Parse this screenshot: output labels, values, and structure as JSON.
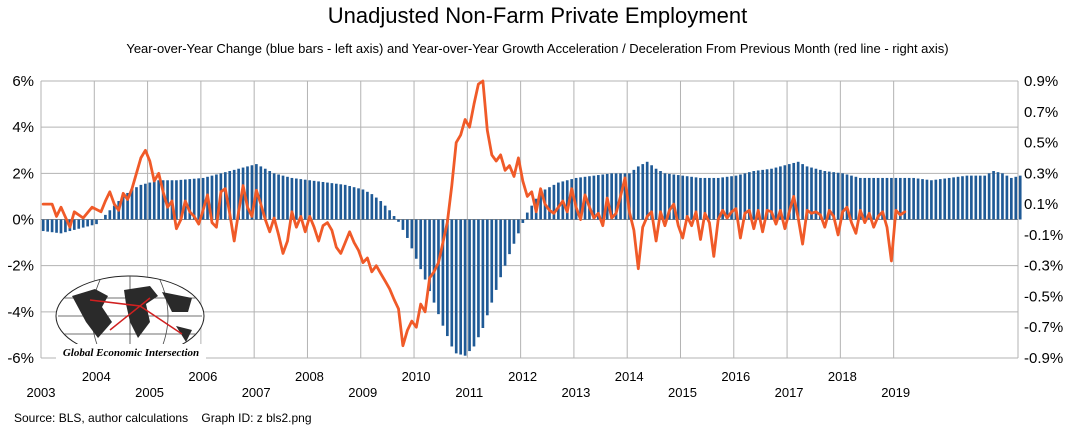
{
  "chart_data": {
    "type": "bar+line",
    "title": "Unadjusted Non-Farm Private Employment",
    "subtitle": "Year-over-Year Change (blue bars - left axis) and Year-over-Year Growth Acceleration / Deceleration From Previous Month (red line - right axis)",
    "source": "Source: BLS, author calculations    Graph ID: z bls2.png",
    "left_axis": {
      "ylim": [
        -6,
        6
      ],
      "ticks": [
        "6%",
        "4%",
        "2%",
        "0%",
        "-2%",
        "-4%",
        "-6%"
      ]
    },
    "right_axis": {
      "ylim": [
        -0.9,
        0.9
      ],
      "ticks": [
        "0.9%",
        "0.7%",
        "0.5%",
        "0.3%",
        "0.1%",
        "-0.1%",
        "-0.3%",
        "-0.5%",
        "-0.7%",
        "-0.9%"
      ]
    },
    "x_axis": {
      "years": [
        "2003",
        "2004",
        "2005",
        "2006",
        "2007",
        "2008",
        "2009",
        "2010",
        "2011",
        "2012",
        "2013",
        "2014",
        "2015",
        "2016",
        "2017",
        "2018",
        "2019"
      ],
      "start": "2003-01",
      "months": 194
    },
    "grid": true,
    "series": [
      {
        "axis": "left",
        "kind": "bar",
        "color": "#1f5a96",
        "anchors": [
          [
            0,
            -0.5
          ],
          [
            4,
            -0.6
          ],
          [
            8,
            -0.4
          ],
          [
            12,
            -0.2
          ],
          [
            14,
            0.2
          ],
          [
            16,
            0.6
          ],
          [
            18,
            1.0
          ],
          [
            20,
            1.3
          ],
          [
            22,
            1.5
          ],
          [
            26,
            1.7
          ],
          [
            30,
            1.7
          ],
          [
            36,
            1.8
          ],
          [
            40,
            2.0
          ],
          [
            44,
            2.2
          ],
          [
            48,
            2.4
          ],
          [
            52,
            2.0
          ],
          [
            56,
            1.8
          ],
          [
            60,
            1.7
          ],
          [
            64,
            1.6
          ],
          [
            68,
            1.5
          ],
          [
            72,
            1.3
          ],
          [
            74,
            1.1
          ],
          [
            76,
            0.8
          ],
          [
            78,
            0.4
          ],
          [
            80,
            -0.1
          ],
          [
            82,
            -0.8
          ],
          [
            84,
            -1.7
          ],
          [
            86,
            -2.6
          ],
          [
            88,
            -3.6
          ],
          [
            90,
            -4.6
          ],
          [
            92,
            -5.5
          ],
          [
            93,
            -5.8
          ],
          [
            95,
            -5.9
          ],
          [
            97,
            -5.5
          ],
          [
            99,
            -4.7
          ],
          [
            101,
            -3.6
          ],
          [
            103,
            -2.5
          ],
          [
            105,
            -1.5
          ],
          [
            107,
            -0.6
          ],
          [
            109,
            0.3
          ],
          [
            111,
            0.9
          ],
          [
            113,
            1.3
          ],
          [
            116,
            1.6
          ],
          [
            120,
            1.8
          ],
          [
            124,
            1.9
          ],
          [
            128,
            2.0
          ],
          [
            132,
            2.0
          ],
          [
            134,
            2.3
          ],
          [
            136,
            2.5
          ],
          [
            138,
            2.2
          ],
          [
            140,
            2.0
          ],
          [
            144,
            1.9
          ],
          [
            148,
            1.8
          ],
          [
            152,
            1.8
          ],
          [
            156,
            1.9
          ],
          [
            160,
            2.1
          ],
          [
            164,
            2.2
          ],
          [
            168,
            2.4
          ],
          [
            170,
            2.5
          ],
          [
            172,
            2.3
          ],
          [
            176,
            2.1
          ],
          [
            180,
            2.0
          ],
          [
            184,
            1.8
          ],
          [
            188,
            1.8
          ],
          [
            192,
            1.8
          ],
          [
            196,
            1.8
          ],
          [
            200,
            1.7
          ],
          [
            204,
            1.8
          ],
          [
            208,
            1.9
          ],
          [
            212,
            1.9
          ],
          [
            214,
            2.1
          ],
          [
            216,
            2.0
          ],
          [
            218,
            1.8
          ],
          [
            220,
            1.9
          ]
        ]
      },
      {
        "axis": "right",
        "kind": "line",
        "color": "#f05a28",
        "anchors": [
          [
            0,
            0.1
          ],
          [
            2,
            0.1
          ],
          [
            3,
            0.02
          ],
          [
            4,
            0.08
          ],
          [
            6,
            -0.05
          ],
          [
            7,
            0.05
          ],
          [
            9,
            0.01
          ],
          [
            11,
            0.08
          ],
          [
            13,
            0.05
          ],
          [
            14,
            0.12
          ],
          [
            15,
            0.18
          ],
          [
            16,
            0.1
          ],
          [
            17,
            0.06
          ],
          [
            18,
            0.17
          ],
          [
            19,
            0.13
          ],
          [
            20,
            0.2
          ],
          [
            22,
            0.4
          ],
          [
            23,
            0.45
          ],
          [
            24,
            0.38
          ],
          [
            25,
            0.25
          ],
          [
            26,
            0.3
          ],
          [
            27,
            0.18
          ],
          [
            28,
            0.08
          ],
          [
            29,
            0.12
          ],
          [
            30,
            -0.06
          ],
          [
            31,
            0.0
          ],
          [
            32,
            0.12
          ],
          [
            33,
            0.05
          ],
          [
            34,
            0.02
          ],
          [
            35,
            -0.03
          ],
          [
            36,
            0.06
          ],
          [
            37,
            0.16
          ],
          [
            38,
            -0.02
          ],
          [
            39,
            -0.05
          ],
          [
            40,
            0.18
          ],
          [
            41,
            0.2
          ],
          [
            42,
            0.04
          ],
          [
            43,
            -0.14
          ],
          [
            44,
            0.05
          ],
          [
            45,
            0.22
          ],
          [
            46,
            0.08
          ],
          [
            47,
            0.02
          ],
          [
            48,
            0.19
          ],
          [
            49,
            0.1
          ],
          [
            50,
            0.0
          ],
          [
            51,
            -0.08
          ],
          [
            52,
            0.01
          ],
          [
            53,
            -0.1
          ],
          [
            54,
            -0.22
          ],
          [
            55,
            -0.14
          ],
          [
            56,
            0.05
          ],
          [
            57,
            -0.05
          ],
          [
            58,
            0.02
          ],
          [
            59,
            -0.08
          ],
          [
            60,
            0.02
          ],
          [
            61,
            -0.05
          ],
          [
            62,
            -0.14
          ],
          [
            63,
            -0.04
          ],
          [
            64,
            -0.02
          ],
          [
            65,
            -0.07
          ],
          [
            66,
            -0.18
          ],
          [
            67,
            -0.22
          ],
          [
            68,
            -0.15
          ],
          [
            69,
            -0.08
          ],
          [
            70,
            -0.15
          ],
          [
            71,
            -0.2
          ],
          [
            72,
            -0.28
          ],
          [
            73,
            -0.25
          ],
          [
            74,
            -0.34
          ],
          [
            75,
            -0.3
          ],
          [
            76,
            -0.35
          ],
          [
            77,
            -0.4
          ],
          [
            78,
            -0.45
          ],
          [
            79,
            -0.52
          ],
          [
            80,
            -0.58
          ],
          [
            81,
            -0.82
          ],
          [
            82,
            -0.72
          ],
          [
            83,
            -0.66
          ],
          [
            84,
            -0.7
          ],
          [
            85,
            -0.55
          ],
          [
            86,
            -0.6
          ],
          [
            87,
            -0.38
          ],
          [
            88,
            -0.34
          ],
          [
            89,
            -0.28
          ],
          [
            90,
            -0.15
          ],
          [
            91,
            -0.02
          ],
          [
            92,
            0.22
          ],
          [
            93,
            0.5
          ],
          [
            94,
            0.55
          ],
          [
            95,
            0.65
          ],
          [
            96,
            0.6
          ],
          [
            97,
            0.75
          ],
          [
            98,
            0.88
          ],
          [
            99,
            0.9
          ],
          [
            100,
            0.58
          ],
          [
            101,
            0.42
          ],
          [
            102,
            0.38
          ],
          [
            103,
            0.42
          ],
          [
            104,
            0.32
          ],
          [
            105,
            0.35
          ],
          [
            106,
            0.28
          ],
          [
            107,
            0.4
          ],
          [
            108,
            0.25
          ],
          [
            109,
            0.15
          ],
          [
            110,
            0.18
          ],
          [
            111,
            0.05
          ],
          [
            112,
            0.2
          ],
          [
            113,
            0.1
          ],
          [
            114,
            0.06
          ],
          [
            115,
            0.04
          ],
          [
            116,
            0.08
          ],
          [
            117,
            0.12
          ],
          [
            118,
            0.05
          ],
          [
            119,
            0.2
          ],
          [
            120,
            0.08
          ],
          [
            121,
            0.0
          ],
          [
            122,
            0.16
          ],
          [
            123,
            0.08
          ],
          [
            124,
            0.01
          ],
          [
            125,
            0.04
          ],
          [
            126,
            -0.04
          ],
          [
            127,
            0.14
          ],
          [
            128,
            0.01
          ],
          [
            129,
            0.04
          ],
          [
            130,
            0.15
          ],
          [
            131,
            0.27
          ],
          [
            132,
            0.05
          ],
          [
            133,
            -0.07
          ],
          [
            134,
            -0.32
          ],
          [
            135,
            -0.05
          ],
          [
            136,
            0.02
          ],
          [
            137,
            0.05
          ],
          [
            138,
            -0.14
          ],
          [
            139,
            0.05
          ],
          [
            140,
            -0.04
          ],
          [
            141,
            0.06
          ],
          [
            142,
            0.1
          ],
          [
            143,
            -0.04
          ],
          [
            144,
            -0.12
          ],
          [
            145,
            0.02
          ],
          [
            146,
            -0.04
          ],
          [
            147,
            0.05
          ],
          [
            148,
            -0.13
          ],
          [
            149,
            0.04
          ],
          [
            150,
            -0.02
          ],
          [
            151,
            -0.24
          ],
          [
            152,
            0.0
          ],
          [
            153,
            0.06
          ],
          [
            154,
            0.01
          ],
          [
            155,
            0.05
          ],
          [
            156,
            0.07
          ],
          [
            157,
            -0.12
          ],
          [
            158,
            0.04
          ],
          [
            159,
            0.06
          ],
          [
            160,
            -0.06
          ],
          [
            161,
            0.06
          ],
          [
            162,
            -0.08
          ],
          [
            163,
            0.06
          ],
          [
            164,
            0.05
          ],
          [
            165,
            -0.03
          ],
          [
            166,
            0.06
          ],
          [
            167,
            -0.06
          ],
          [
            168,
            0.05
          ],
          [
            169,
            0.15
          ],
          [
            170,
            0.01
          ],
          [
            171,
            -0.16
          ],
          [
            172,
            0.06
          ],
          [
            173,
            0.04
          ],
          [
            174,
            0.05
          ],
          [
            175,
            0.03
          ],
          [
            176,
            -0.05
          ],
          [
            177,
            0.06
          ],
          [
            178,
            0.02
          ],
          [
            179,
            -0.1
          ],
          [
            180,
            0.05
          ],
          [
            181,
            0.08
          ],
          [
            182,
            -0.02
          ],
          [
            183,
            -0.09
          ],
          [
            184,
            0.06
          ],
          [
            185,
            -0.02
          ],
          [
            186,
            0.04
          ],
          [
            187,
            -0.05
          ],
          [
            188,
            0.02
          ],
          [
            189,
            0.05
          ],
          [
            190,
            -0.05
          ],
          [
            191,
            -0.27
          ],
          [
            192,
            0.06
          ],
          [
            193,
            0.03
          ],
          [
            194,
            0.05
          ]
        ]
      }
    ]
  },
  "logo": {
    "text": "Global Economic Intersection"
  }
}
